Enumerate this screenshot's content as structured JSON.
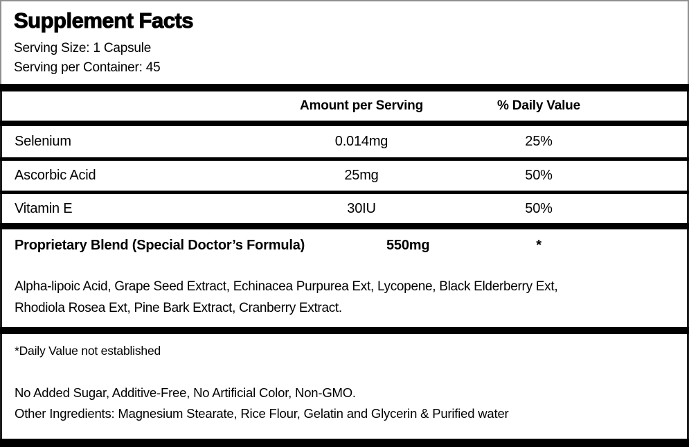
{
  "label": {
    "title": "Supplement Facts",
    "serving_size": "Serving Size: 1 Capsule",
    "servings_per_container": "Serving per Container: 45"
  },
  "table": {
    "headers": {
      "amount": "Amount per Serving",
      "daily_value": "% Daily Value"
    },
    "rows": [
      {
        "name": "Selenium",
        "amount": "0.014mg",
        "daily_value": "25%"
      },
      {
        "name": "Ascorbic Acid",
        "amount": "25mg",
        "daily_value": "50%"
      },
      {
        "name": "Vitamin E",
        "amount": "30IU",
        "daily_value": "50%"
      }
    ]
  },
  "proprietary_blend": {
    "name": "Proprietary Blend (Special Doctor’s Formula)",
    "amount": "550mg",
    "daily_value": "*",
    "ingredients": "Alpha-lipoic Acid, Grape Seed Extract, Echinacea Purpurea Ext, Lycopene, Black Elderberry Ext, Rhodiola Rosea Ext, Pine Bark Extract, Cranberry Extract."
  },
  "footnotes": {
    "daily_value_note": "*Daily Value not established",
    "claims": "No Added Sugar, Additive-Free, No Artificial Color, Non-GMO.",
    "other_ingredients": "Other Ingredients: Magnesium Stearate, Rice Flour, Gelatin and Glycerin & Purified water"
  },
  "colors": {
    "text": "#000000",
    "background": "#ffffff",
    "divider": "#000000",
    "outer_border": "#8f8f8f"
  }
}
